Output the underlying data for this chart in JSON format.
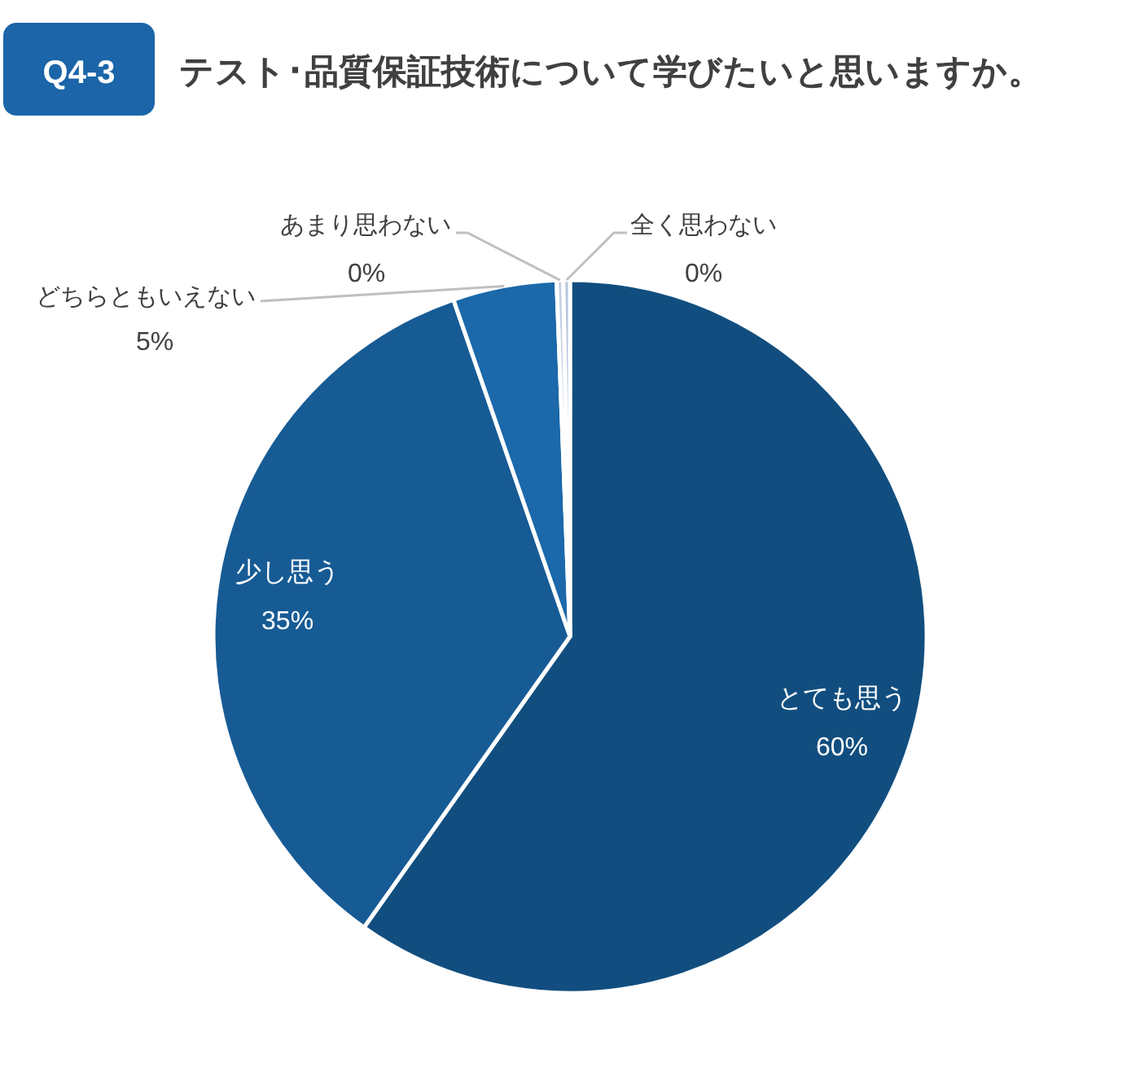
{
  "chart_data": {
    "type": "pie",
    "title": "テスト･品質保証技術について学びたいと思いますか。",
    "annotations": [
      "Q4-3"
    ],
    "categories": [
      "とても思う",
      "少し思う",
      "どちらともいえない",
      "あまり思わない",
      "全く思わない"
    ],
    "values": [
      59.8,
      34.9,
      4.7,
      0.3,
      0.3
    ],
    "colors": [
      "#114e7f",
      "#175b95",
      "#1b68aa",
      "#c6d0e3",
      "#b8c4dc"
    ],
    "value_labels": [
      "60%",
      "35%",
      "5%",
      "0%",
      "0%"
    ]
  }
}
